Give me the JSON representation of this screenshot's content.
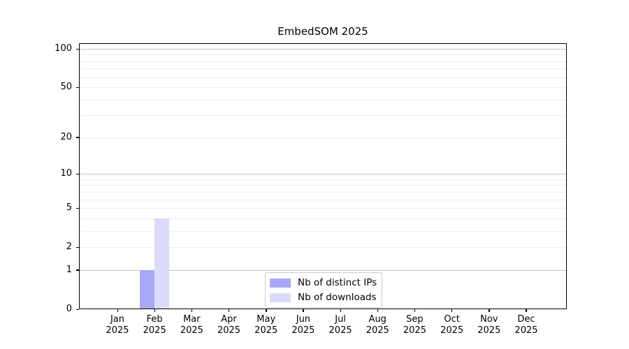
{
  "chart_data": {
    "type": "bar",
    "title": "EmbedSOM 2025",
    "xlabel": "",
    "ylabel": "",
    "yscale": "log1p",
    "yticks": [
      0,
      1,
      2,
      5,
      10,
      20,
      50,
      100
    ],
    "ylim": [
      0,
      112
    ],
    "grid": "on",
    "grid_major_values": [
      1,
      10,
      100
    ],
    "grid_minor_values": [
      2,
      3,
      4,
      5,
      6,
      7,
      8,
      9,
      20,
      30,
      40,
      50,
      60,
      70,
      80,
      90
    ],
    "legend_position": "bottom-center",
    "categories": [
      {
        "month": "Jan",
        "year": "2025"
      },
      {
        "month": "Feb",
        "year": "2025"
      },
      {
        "month": "Mar",
        "year": "2025"
      },
      {
        "month": "Apr",
        "year": "2025"
      },
      {
        "month": "May",
        "year": "2025"
      },
      {
        "month": "Jun",
        "year": "2025"
      },
      {
        "month": "Jul",
        "year": "2025"
      },
      {
        "month": "Aug",
        "year": "2025"
      },
      {
        "month": "Sep",
        "year": "2025"
      },
      {
        "month": "Oct",
        "year": "2025"
      },
      {
        "month": "Nov",
        "year": "2025"
      },
      {
        "month": "Dec",
        "year": "2025"
      }
    ],
    "series": [
      {
        "name": "Nb of distinct IPs",
        "color": "#a8a8f6",
        "values": [
          0,
          1,
          0,
          0,
          0,
          0,
          0,
          0,
          0,
          0,
          0,
          0
        ]
      },
      {
        "name": "Nb of downloads",
        "color": "#dbdbf9",
        "values": [
          0,
          4,
          0,
          0,
          0,
          0,
          0,
          0,
          0,
          0,
          0,
          0
        ]
      }
    ],
    "colors": {
      "axis_spine": "#000000",
      "grid_major": "#c6c6c6",
      "grid_minor": "#ededed",
      "legend_border": "#cbcbcb",
      "background": "#ffffff"
    }
  }
}
